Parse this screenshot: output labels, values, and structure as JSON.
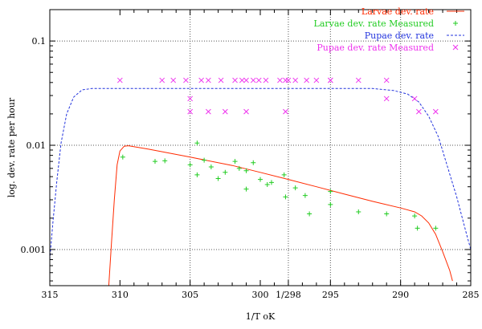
{
  "colors": {
    "larvae_model": "#ff2a00",
    "larvae_measured": "#22cc22",
    "pupae_model": "#2233dd",
    "pupae_measured": "#ee33ee",
    "grid": "#555555",
    "axis": "#000000"
  },
  "chart_data": {
    "type": "line",
    "title": "",
    "xlabel": "1/T oK",
    "ylabel": "log. dev. rate per hour",
    "xlim": [
      315,
      285
    ],
    "ylim": [
      0.00045,
      0.2
    ],
    "yscale": "log",
    "grid": "dotted, at labeled ticks",
    "legend_position": "top-right",
    "x_ticks": [
      {
        "value": 315,
        "label": "315"
      },
      {
        "value": 310,
        "label": "310"
      },
      {
        "value": 305,
        "label": "305"
      },
      {
        "value": 300,
        "label": "300"
      },
      {
        "value": 298,
        "label": "1/298"
      },
      {
        "value": 295,
        "label": "295"
      },
      {
        "value": 290,
        "label": "290"
      },
      {
        "value": 285,
        "label": "285"
      }
    ],
    "x_minor_ticks": [
      309,
      308,
      307,
      306,
      304,
      303,
      302,
      301,
      299,
      297,
      296,
      294,
      293,
      292,
      291,
      289,
      288,
      287,
      286
    ],
    "x_gridlines": [
      305,
      298,
      295,
      290
    ],
    "y_ticks": [
      {
        "value": 0.1,
        "label": "0.1"
      },
      {
        "value": 0.01,
        "label": "0.01"
      },
      {
        "value": 0.001,
        "label": "0.001"
      }
    ],
    "y_minor_ticks": [
      0.0005,
      0.0006,
      0.0007,
      0.0008,
      0.0009,
      0.002,
      0.003,
      0.004,
      0.005,
      0.006,
      0.007,
      0.008,
      0.009,
      0.02,
      0.03,
      0.04,
      0.05,
      0.06,
      0.07,
      0.08,
      0.09,
      0.2
    ],
    "y_gridlines": [
      0.1,
      0.01,
      0.001
    ],
    "series": [
      {
        "name": "Larvae dev. rate",
        "kind": "line",
        "color": "#ff2a00",
        "dash": "",
        "points": [
          [
            310.8,
            0.00045
          ],
          [
            310.6,
            0.0012
          ],
          [
            310.4,
            0.003
          ],
          [
            310.2,
            0.0065
          ],
          [
            310.0,
            0.0088
          ],
          [
            309.7,
            0.0098
          ],
          [
            309.4,
            0.0099
          ],
          [
            308.0,
            0.0092
          ],
          [
            305.0,
            0.0077
          ],
          [
            302.0,
            0.0064
          ],
          [
            300.0,
            0.0055
          ],
          [
            298.0,
            0.0047
          ],
          [
            296.0,
            0.004
          ],
          [
            294.0,
            0.0034
          ],
          [
            292.0,
            0.0029
          ],
          [
            290.0,
            0.0025
          ],
          [
            289.0,
            0.0023
          ],
          [
            288.5,
            0.0021
          ],
          [
            288.0,
            0.0018
          ],
          [
            287.5,
            0.0014
          ],
          [
            287.0,
            0.00095
          ],
          [
            286.5,
            0.00063
          ],
          [
            286.3,
            0.0005
          ]
        ]
      },
      {
        "name": "Larvae dev. rate Measured",
        "kind": "plus",
        "color": "#22cc22",
        "points": [
          [
            309.8,
            0.0077
          ],
          [
            307.5,
            0.007
          ],
          [
            306.8,
            0.0071
          ],
          [
            305.0,
            0.0065
          ],
          [
            304.5,
            0.0052
          ],
          [
            304.0,
            0.0072
          ],
          [
            303.5,
            0.0062
          ],
          [
            303.0,
            0.0048
          ],
          [
            302.5,
            0.0055
          ],
          [
            301.8,
            0.007
          ],
          [
            301.5,
            0.006
          ],
          [
            301.0,
            0.0057
          ],
          [
            301.0,
            0.0038
          ],
          [
            300.5,
            0.0068
          ],
          [
            300.0,
            0.0047
          ],
          [
            299.2,
            0.0044
          ],
          [
            298.3,
            0.0052
          ],
          [
            298.2,
            0.0032
          ],
          [
            297.5,
            0.0039
          ],
          [
            296.8,
            0.0033
          ],
          [
            296.5,
            0.0022
          ],
          [
            295.0,
            0.0036
          ],
          [
            295.0,
            0.0027
          ],
          [
            293.0,
            0.0023
          ],
          [
            291.0,
            0.0022
          ],
          [
            289.0,
            0.0021
          ],
          [
            288.8,
            0.0016
          ],
          [
            287.5,
            0.0016
          ],
          [
            304.5,
            0.0105
          ],
          [
            299.5,
            0.0042
          ]
        ]
      },
      {
        "name": "Pupae dev. rate",
        "kind": "line",
        "color": "#2233dd",
        "dash": "3,2",
        "points": [
          [
            315.0,
            0.0008
          ],
          [
            314.8,
            0.0017
          ],
          [
            314.5,
            0.0045
          ],
          [
            314.2,
            0.0105
          ],
          [
            313.8,
            0.02
          ],
          [
            313.3,
            0.029
          ],
          [
            312.7,
            0.034
          ],
          [
            312.0,
            0.035
          ],
          [
            310.0,
            0.035
          ],
          [
            305.0,
            0.035
          ],
          [
            300.0,
            0.035
          ],
          [
            295.0,
            0.035
          ],
          [
            292.0,
            0.035
          ],
          [
            290.5,
            0.0335
          ],
          [
            289.5,
            0.031
          ],
          [
            288.7,
            0.026
          ],
          [
            288.0,
            0.019
          ],
          [
            287.3,
            0.012
          ],
          [
            286.7,
            0.0065
          ],
          [
            286.0,
            0.0032
          ],
          [
            285.3,
            0.0014
          ],
          [
            285.0,
            0.001
          ]
        ]
      },
      {
        "name": "Pupae dev. rate Measured",
        "kind": "cross",
        "color": "#ee33ee",
        "points": [
          [
            310.0,
            0.042
          ],
          [
            307.0,
            0.042
          ],
          [
            306.2,
            0.042
          ],
          [
            305.3,
            0.042
          ],
          [
            304.2,
            0.042
          ],
          [
            303.7,
            0.042
          ],
          [
            302.8,
            0.042
          ],
          [
            301.8,
            0.042
          ],
          [
            301.3,
            0.042
          ],
          [
            301.0,
            0.042
          ],
          [
            300.5,
            0.042
          ],
          [
            300.1,
            0.042
          ],
          [
            299.6,
            0.042
          ],
          [
            298.6,
            0.042
          ],
          [
            298.2,
            0.042
          ],
          [
            298.0,
            0.042
          ],
          [
            297.5,
            0.042
          ],
          [
            296.7,
            0.042
          ],
          [
            296.0,
            0.042
          ],
          [
            295.0,
            0.042
          ],
          [
            295.0,
            0.042
          ],
          [
            293.0,
            0.042
          ],
          [
            291.0,
            0.042
          ],
          [
            305.0,
            0.021
          ],
          [
            303.7,
            0.021
          ],
          [
            302.5,
            0.021
          ],
          [
            301.0,
            0.021
          ],
          [
            298.2,
            0.021
          ],
          [
            289.0,
            0.028
          ],
          [
            288.7,
            0.021
          ],
          [
            287.5,
            0.021
          ],
          [
            291.0,
            0.028
          ],
          [
            305.0,
            0.028
          ]
        ]
      }
    ]
  }
}
